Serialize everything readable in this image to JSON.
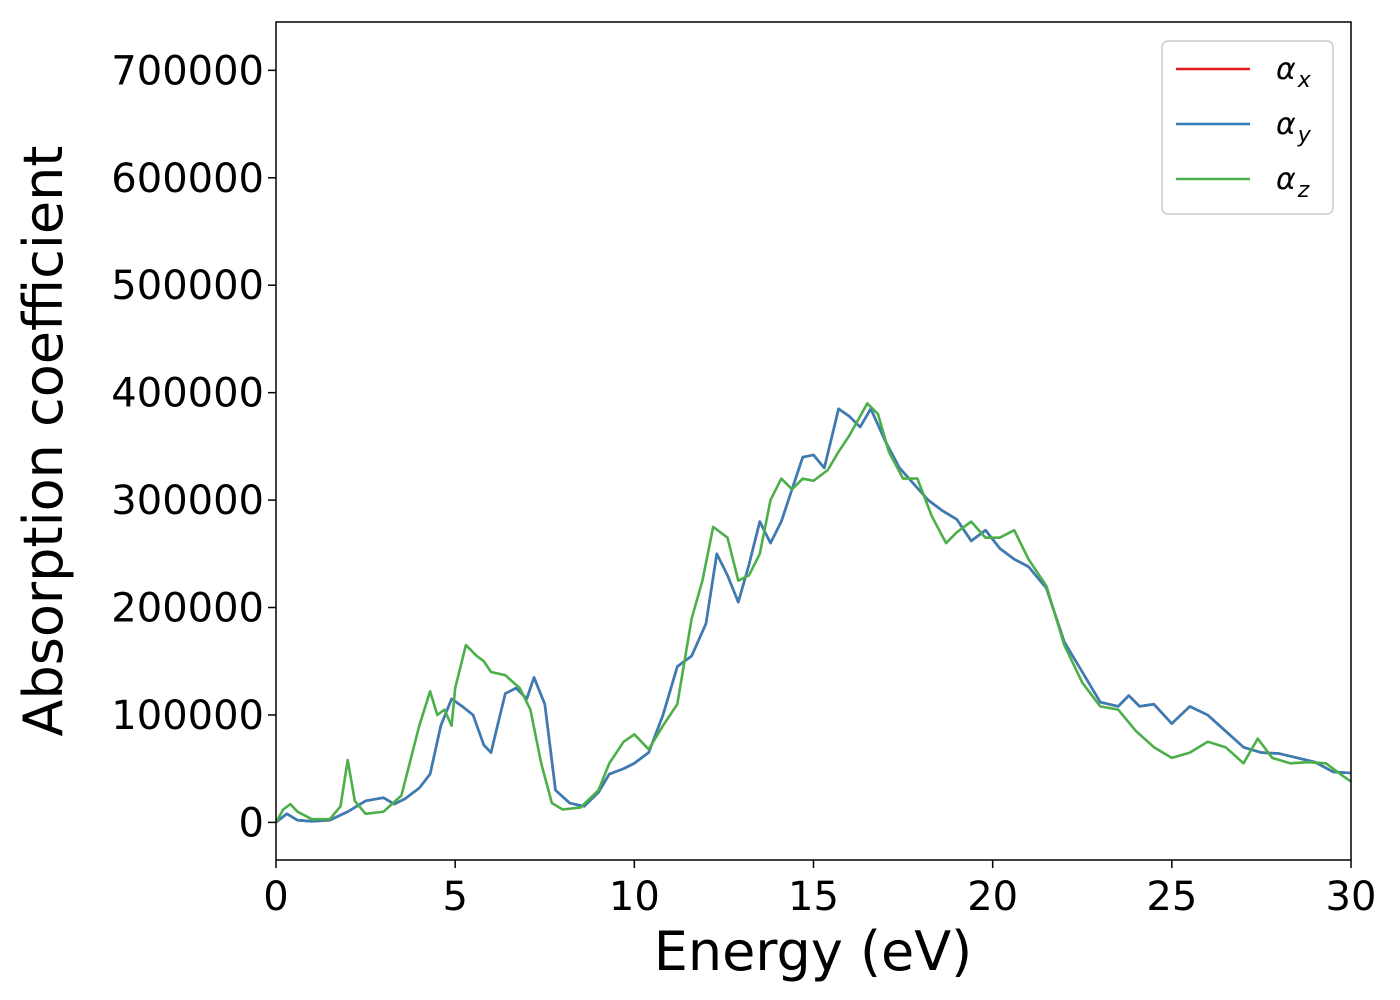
{
  "chart_data": {
    "type": "line",
    "xlabel": "Energy (eV)",
    "ylabel": "Absorption coefficient",
    "xlim": [
      0,
      30
    ],
    "ylim": [
      -35000,
      745000
    ],
    "xticks": [
      0,
      5,
      10,
      15,
      20,
      25,
      30
    ],
    "xtick_labels": [
      "0",
      "5",
      "10",
      "15",
      "20",
      "25",
      "30"
    ],
    "yticks": [
      0,
      100000,
      200000,
      300000,
      400000,
      500000,
      600000,
      700000
    ],
    "ytick_labels": [
      "0",
      "100000",
      "200000",
      "300000",
      "400000",
      "500000",
      "600000",
      "700000"
    ],
    "grid": false,
    "legend": "top-right",
    "series": [
      {
        "name": "α_x",
        "legend_base": "α",
        "legend_sub": "x",
        "color": "#e41a1c",
        "x": [
          0,
          0.3,
          0.6,
          1,
          1.5,
          2,
          2.5,
          3,
          3.3,
          3.6,
          4,
          4.3,
          4.6,
          4.9,
          5.2,
          5.5,
          5.8,
          6.0,
          6.4,
          6.7,
          7.0,
          7.2,
          7.5,
          7.8,
          8.2,
          8.6,
          9.0,
          9.3,
          9.7,
          10,
          10.4,
          10.8,
          11.2,
          11.6,
          12.0,
          12.3,
          12.6,
          12.9,
          13.2,
          13.5,
          13.8,
          14.1,
          14.4,
          14.7,
          15.0,
          15.3,
          15.7,
          16.0,
          16.3,
          16.6,
          17.0,
          17.4,
          17.8,
          18.2,
          18.6,
          19.0,
          19.4,
          19.8,
          20.2,
          20.6,
          21.0,
          21.5,
          22.0,
          22.5,
          23.0,
          23.5,
          23.8,
          24.1,
          24.5,
          25.0,
          25.5,
          26.0,
          26.5,
          27.0,
          27.5,
          28.0,
          28.5,
          29.0,
          29.5,
          30.0
        ],
        "y": [
          0,
          8000,
          2000,
          1000,
          2000,
          10000,
          20000,
          23000,
          17000,
          22000,
          32000,
          45000,
          90000,
          115000,
          108000,
          100000,
          72000,
          65000,
          120000,
          125000,
          115000,
          135000,
          110000,
          30000,
          18000,
          15000,
          28000,
          45000,
          50000,
          55000,
          65000,
          100000,
          145000,
          155000,
          185000,
          250000,
          230000,
          205000,
          240000,
          280000,
          260000,
          280000,
          310000,
          340000,
          342000,
          330000,
          385000,
          378000,
          368000,
          385000,
          355000,
          330000,
          315000,
          300000,
          290000,
          282000,
          262000,
          272000,
          255000,
          245000,
          238000,
          218000,
          168000,
          140000,
          112000,
          108000,
          118000,
          108000,
          110000,
          92000,
          108000,
          100000,
          85000,
          70000,
          65000,
          64000,
          60000,
          56000,
          47000,
          46000
        ]
      },
      {
        "name": "α_y",
        "legend_base": "α",
        "legend_sub": "y",
        "color": "#377eb8",
        "x": [
          0,
          0.3,
          0.6,
          1,
          1.5,
          2,
          2.5,
          3,
          3.3,
          3.6,
          4,
          4.3,
          4.6,
          4.9,
          5.2,
          5.5,
          5.8,
          6.0,
          6.4,
          6.7,
          7.0,
          7.2,
          7.5,
          7.8,
          8.2,
          8.6,
          9.0,
          9.3,
          9.7,
          10,
          10.4,
          10.8,
          11.2,
          11.6,
          12.0,
          12.3,
          12.6,
          12.9,
          13.2,
          13.5,
          13.8,
          14.1,
          14.4,
          14.7,
          15.0,
          15.3,
          15.7,
          16.0,
          16.3,
          16.6,
          17.0,
          17.4,
          17.8,
          18.2,
          18.6,
          19.0,
          19.4,
          19.8,
          20.2,
          20.6,
          21.0,
          21.5,
          22.0,
          22.5,
          23.0,
          23.5,
          23.8,
          24.1,
          24.5,
          25.0,
          25.5,
          26.0,
          26.5,
          27.0,
          27.5,
          28.0,
          28.5,
          29.0,
          29.5,
          30.0
        ],
        "y": [
          0,
          8000,
          2000,
          1000,
          2000,
          10000,
          20000,
          23000,
          17000,
          22000,
          32000,
          45000,
          90000,
          115000,
          108000,
          100000,
          72000,
          65000,
          120000,
          125000,
          115000,
          135000,
          110000,
          30000,
          18000,
          15000,
          28000,
          45000,
          50000,
          55000,
          65000,
          100000,
          145000,
          155000,
          185000,
          250000,
          230000,
          205000,
          240000,
          280000,
          260000,
          280000,
          310000,
          340000,
          342000,
          330000,
          385000,
          378000,
          368000,
          385000,
          355000,
          330000,
          315000,
          300000,
          290000,
          282000,
          262000,
          272000,
          255000,
          245000,
          238000,
          218000,
          168000,
          140000,
          112000,
          108000,
          118000,
          108000,
          110000,
          92000,
          108000,
          100000,
          85000,
          70000,
          65000,
          64000,
          60000,
          56000,
          47000,
          46000
        ]
      },
      {
        "name": "α_z",
        "legend_base": "α",
        "legend_sub": "z",
        "color": "#4daf4a",
        "x": [
          0,
          0.2,
          0.4,
          0.6,
          1,
          1.5,
          1.8,
          2.0,
          2.2,
          2.5,
          3,
          3.5,
          4.0,
          4.3,
          4.5,
          4.7,
          4.9,
          5.0,
          5.3,
          5.6,
          5.8,
          6.0,
          6.4,
          6.8,
          7.1,
          7.4,
          7.7,
          8.0,
          8.5,
          9.0,
          9.3,
          9.7,
          10.0,
          10.4,
          10.8,
          11.2,
          11.6,
          11.9,
          12.2,
          12.6,
          12.9,
          13.2,
          13.5,
          13.8,
          14.1,
          14.4,
          14.7,
          15.0,
          15.4,
          15.7,
          16.0,
          16.3,
          16.5,
          16.8,
          17.1,
          17.5,
          17.9,
          18.3,
          18.7,
          19.0,
          19.4,
          19.8,
          20.2,
          20.6,
          21.0,
          21.5,
          22.0,
          22.5,
          23.0,
          23.5,
          24.0,
          24.5,
          25.0,
          25.5,
          26.0,
          26.5,
          27.0,
          27.4,
          27.8,
          28.3,
          28.8,
          29.3,
          29.7,
          30.0
        ],
        "y": [
          0,
          12000,
          17000,
          10000,
          3000,
          3000,
          15000,
          58000,
          20000,
          8000,
          10000,
          25000,
          90000,
          122000,
          100000,
          105000,
          90000,
          125000,
          165000,
          155000,
          150000,
          140000,
          137000,
          125000,
          105000,
          55000,
          18000,
          12000,
          14000,
          30000,
          55000,
          75000,
          82000,
          68000,
          90000,
          110000,
          190000,
          225000,
          275000,
          265000,
          225000,
          230000,
          250000,
          300000,
          320000,
          310000,
          320000,
          318000,
          328000,
          345000,
          360000,
          378000,
          390000,
          380000,
          345000,
          320000,
          320000,
          285000,
          260000,
          270000,
          280000,
          265000,
          265000,
          272000,
          245000,
          220000,
          165000,
          130000,
          108000,
          105000,
          85000,
          70000,
          60000,
          65000,
          75000,
          70000,
          55000,
          78000,
          60000,
          55000,
          56000,
          55000,
          45000,
          38000
        ]
      }
    ]
  }
}
